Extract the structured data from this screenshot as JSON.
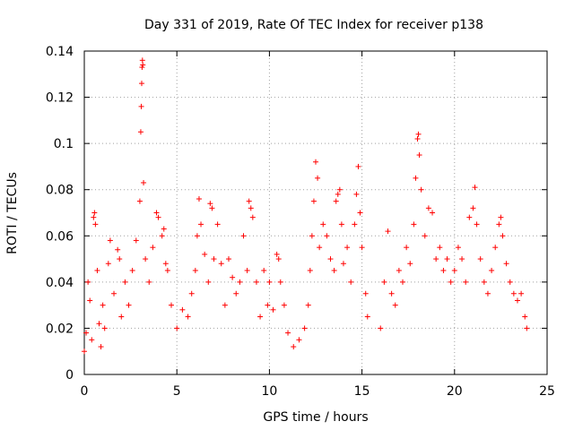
{
  "chart_data": {
    "type": "scatter",
    "title": "Day 331 of 2019, Rate Of TEC Index for receiver p138",
    "xlabel": "GPS time / hours",
    "ylabel": "ROTI / TECUs",
    "xlim": [
      0,
      25
    ],
    "ylim": [
      0,
      0.14
    ],
    "xticks": [
      "0",
      "5",
      "10",
      "15",
      "20",
      "25"
    ],
    "yticks": [
      "0",
      "0.02",
      "0.04",
      "0.06",
      "0.08",
      "0.1",
      "0.12",
      "0.14"
    ],
    "grid": true,
    "marker": "+",
    "color": "#ff0000",
    "series": [
      {
        "name": "ROTI",
        "points": [
          [
            0.0,
            0.01
          ],
          [
            0.1,
            0.018
          ],
          [
            0.2,
            0.04
          ],
          [
            0.3,
            0.032
          ],
          [
            0.4,
            0.015
          ],
          [
            0.5,
            0.068
          ],
          [
            0.55,
            0.07
          ],
          [
            0.6,
            0.065
          ],
          [
            0.7,
            0.045
          ],
          [
            0.8,
            0.022
          ],
          [
            0.9,
            0.012
          ],
          [
            1.0,
            0.03
          ],
          [
            1.1,
            0.02
          ],
          [
            1.3,
            0.048
          ],
          [
            1.4,
            0.058
          ],
          [
            1.6,
            0.035
          ],
          [
            1.8,
            0.054
          ],
          [
            1.9,
            0.05
          ],
          [
            2.0,
            0.025
          ],
          [
            2.2,
            0.04
          ],
          [
            2.4,
            0.03
          ],
          [
            2.6,
            0.045
          ],
          [
            2.8,
            0.058
          ],
          [
            3.0,
            0.075
          ],
          [
            3.05,
            0.105
          ],
          [
            3.08,
            0.116
          ],
          [
            3.1,
            0.126
          ],
          [
            3.12,
            0.133
          ],
          [
            3.14,
            0.136
          ],
          [
            3.16,
            0.134
          ],
          [
            3.2,
            0.083
          ],
          [
            3.3,
            0.05
          ],
          [
            3.5,
            0.04
          ],
          [
            3.7,
            0.055
          ],
          [
            3.9,
            0.07
          ],
          [
            4.0,
            0.068
          ],
          [
            4.2,
            0.06
          ],
          [
            4.3,
            0.063
          ],
          [
            4.4,
            0.048
          ],
          [
            4.5,
            0.045
          ],
          [
            4.7,
            0.03
          ],
          [
            5.0,
            0.02
          ],
          [
            5.3,
            0.028
          ],
          [
            5.6,
            0.025
          ],
          [
            5.8,
            0.035
          ],
          [
            6.0,
            0.045
          ],
          [
            6.1,
            0.06
          ],
          [
            6.2,
            0.076
          ],
          [
            6.3,
            0.065
          ],
          [
            6.5,
            0.052
          ],
          [
            6.7,
            0.04
          ],
          [
            6.8,
            0.074
          ],
          [
            6.9,
            0.072
          ],
          [
            7.0,
            0.05
          ],
          [
            7.2,
            0.065
          ],
          [
            7.4,
            0.048
          ],
          [
            7.6,
            0.03
          ],
          [
            7.8,
            0.05
          ],
          [
            8.0,
            0.042
          ],
          [
            8.2,
            0.035
          ],
          [
            8.4,
            0.04
          ],
          [
            8.6,
            0.06
          ],
          [
            8.8,
            0.045
          ],
          [
            8.9,
            0.075
          ],
          [
            9.0,
            0.072
          ],
          [
            9.1,
            0.068
          ],
          [
            9.3,
            0.04
          ],
          [
            9.5,
            0.025
          ],
          [
            9.7,
            0.045
          ],
          [
            9.9,
            0.03
          ],
          [
            10.0,
            0.04
          ],
          [
            10.2,
            0.028
          ],
          [
            10.4,
            0.052
          ],
          [
            10.5,
            0.05
          ],
          [
            10.6,
            0.04
          ],
          [
            10.8,
            0.03
          ],
          [
            11.0,
            0.018
          ],
          [
            11.3,
            0.012
          ],
          [
            11.6,
            0.015
          ],
          [
            11.9,
            0.02
          ],
          [
            12.1,
            0.03
          ],
          [
            12.2,
            0.045
          ],
          [
            12.3,
            0.06
          ],
          [
            12.4,
            0.075
          ],
          [
            12.5,
            0.092
          ],
          [
            12.6,
            0.085
          ],
          [
            12.7,
            0.055
          ],
          [
            12.9,
            0.065
          ],
          [
            13.1,
            0.06
          ],
          [
            13.3,
            0.05
          ],
          [
            13.5,
            0.045
          ],
          [
            13.6,
            0.075
          ],
          [
            13.7,
            0.078
          ],
          [
            13.8,
            0.08
          ],
          [
            13.9,
            0.065
          ],
          [
            14.0,
            0.048
          ],
          [
            14.2,
            0.055
          ],
          [
            14.4,
            0.04
          ],
          [
            14.6,
            0.065
          ],
          [
            14.7,
            0.078
          ],
          [
            14.8,
            0.09
          ],
          [
            14.9,
            0.07
          ],
          [
            15.0,
            0.055
          ],
          [
            15.2,
            0.035
          ],
          [
            15.3,
            0.025
          ],
          [
            16.0,
            0.02
          ],
          [
            16.2,
            0.04
          ],
          [
            16.4,
            0.062
          ],
          [
            16.6,
            0.035
          ],
          [
            16.8,
            0.03
          ],
          [
            17.0,
            0.045
          ],
          [
            17.2,
            0.04
          ],
          [
            17.4,
            0.055
          ],
          [
            17.6,
            0.048
          ],
          [
            17.8,
            0.065
          ],
          [
            17.9,
            0.085
          ],
          [
            18.0,
            0.102
          ],
          [
            18.05,
            0.104
          ],
          [
            18.1,
            0.095
          ],
          [
            18.2,
            0.08
          ],
          [
            18.4,
            0.06
          ],
          [
            18.6,
            0.072
          ],
          [
            18.8,
            0.07
          ],
          [
            19.0,
            0.05
          ],
          [
            19.2,
            0.055
          ],
          [
            19.4,
            0.045
          ],
          [
            19.6,
            0.05
          ],
          [
            19.8,
            0.04
          ],
          [
            20.0,
            0.045
          ],
          [
            20.2,
            0.055
          ],
          [
            20.4,
            0.05
          ],
          [
            20.6,
            0.04
          ],
          [
            20.8,
            0.068
          ],
          [
            21.0,
            0.072
          ],
          [
            21.1,
            0.081
          ],
          [
            21.2,
            0.065
          ],
          [
            21.4,
            0.05
          ],
          [
            21.6,
            0.04
          ],
          [
            21.8,
            0.035
          ],
          [
            22.0,
            0.045
          ],
          [
            22.2,
            0.055
          ],
          [
            22.4,
            0.065
          ],
          [
            22.5,
            0.068
          ],
          [
            22.6,
            0.06
          ],
          [
            22.8,
            0.048
          ],
          [
            23.0,
            0.04
          ],
          [
            23.2,
            0.035
          ],
          [
            23.4,
            0.032
          ],
          [
            23.6,
            0.035
          ],
          [
            23.8,
            0.025
          ],
          [
            23.9,
            0.02
          ]
        ]
      }
    ]
  }
}
